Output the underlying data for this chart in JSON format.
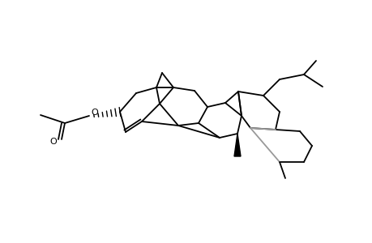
{
  "background": "#ffffff",
  "black": "#000000",
  "gray": "#999999",
  "lw": 1.3,
  "fig_w": 4.6,
  "fig_h": 3.0,
  "dpi": 100
}
